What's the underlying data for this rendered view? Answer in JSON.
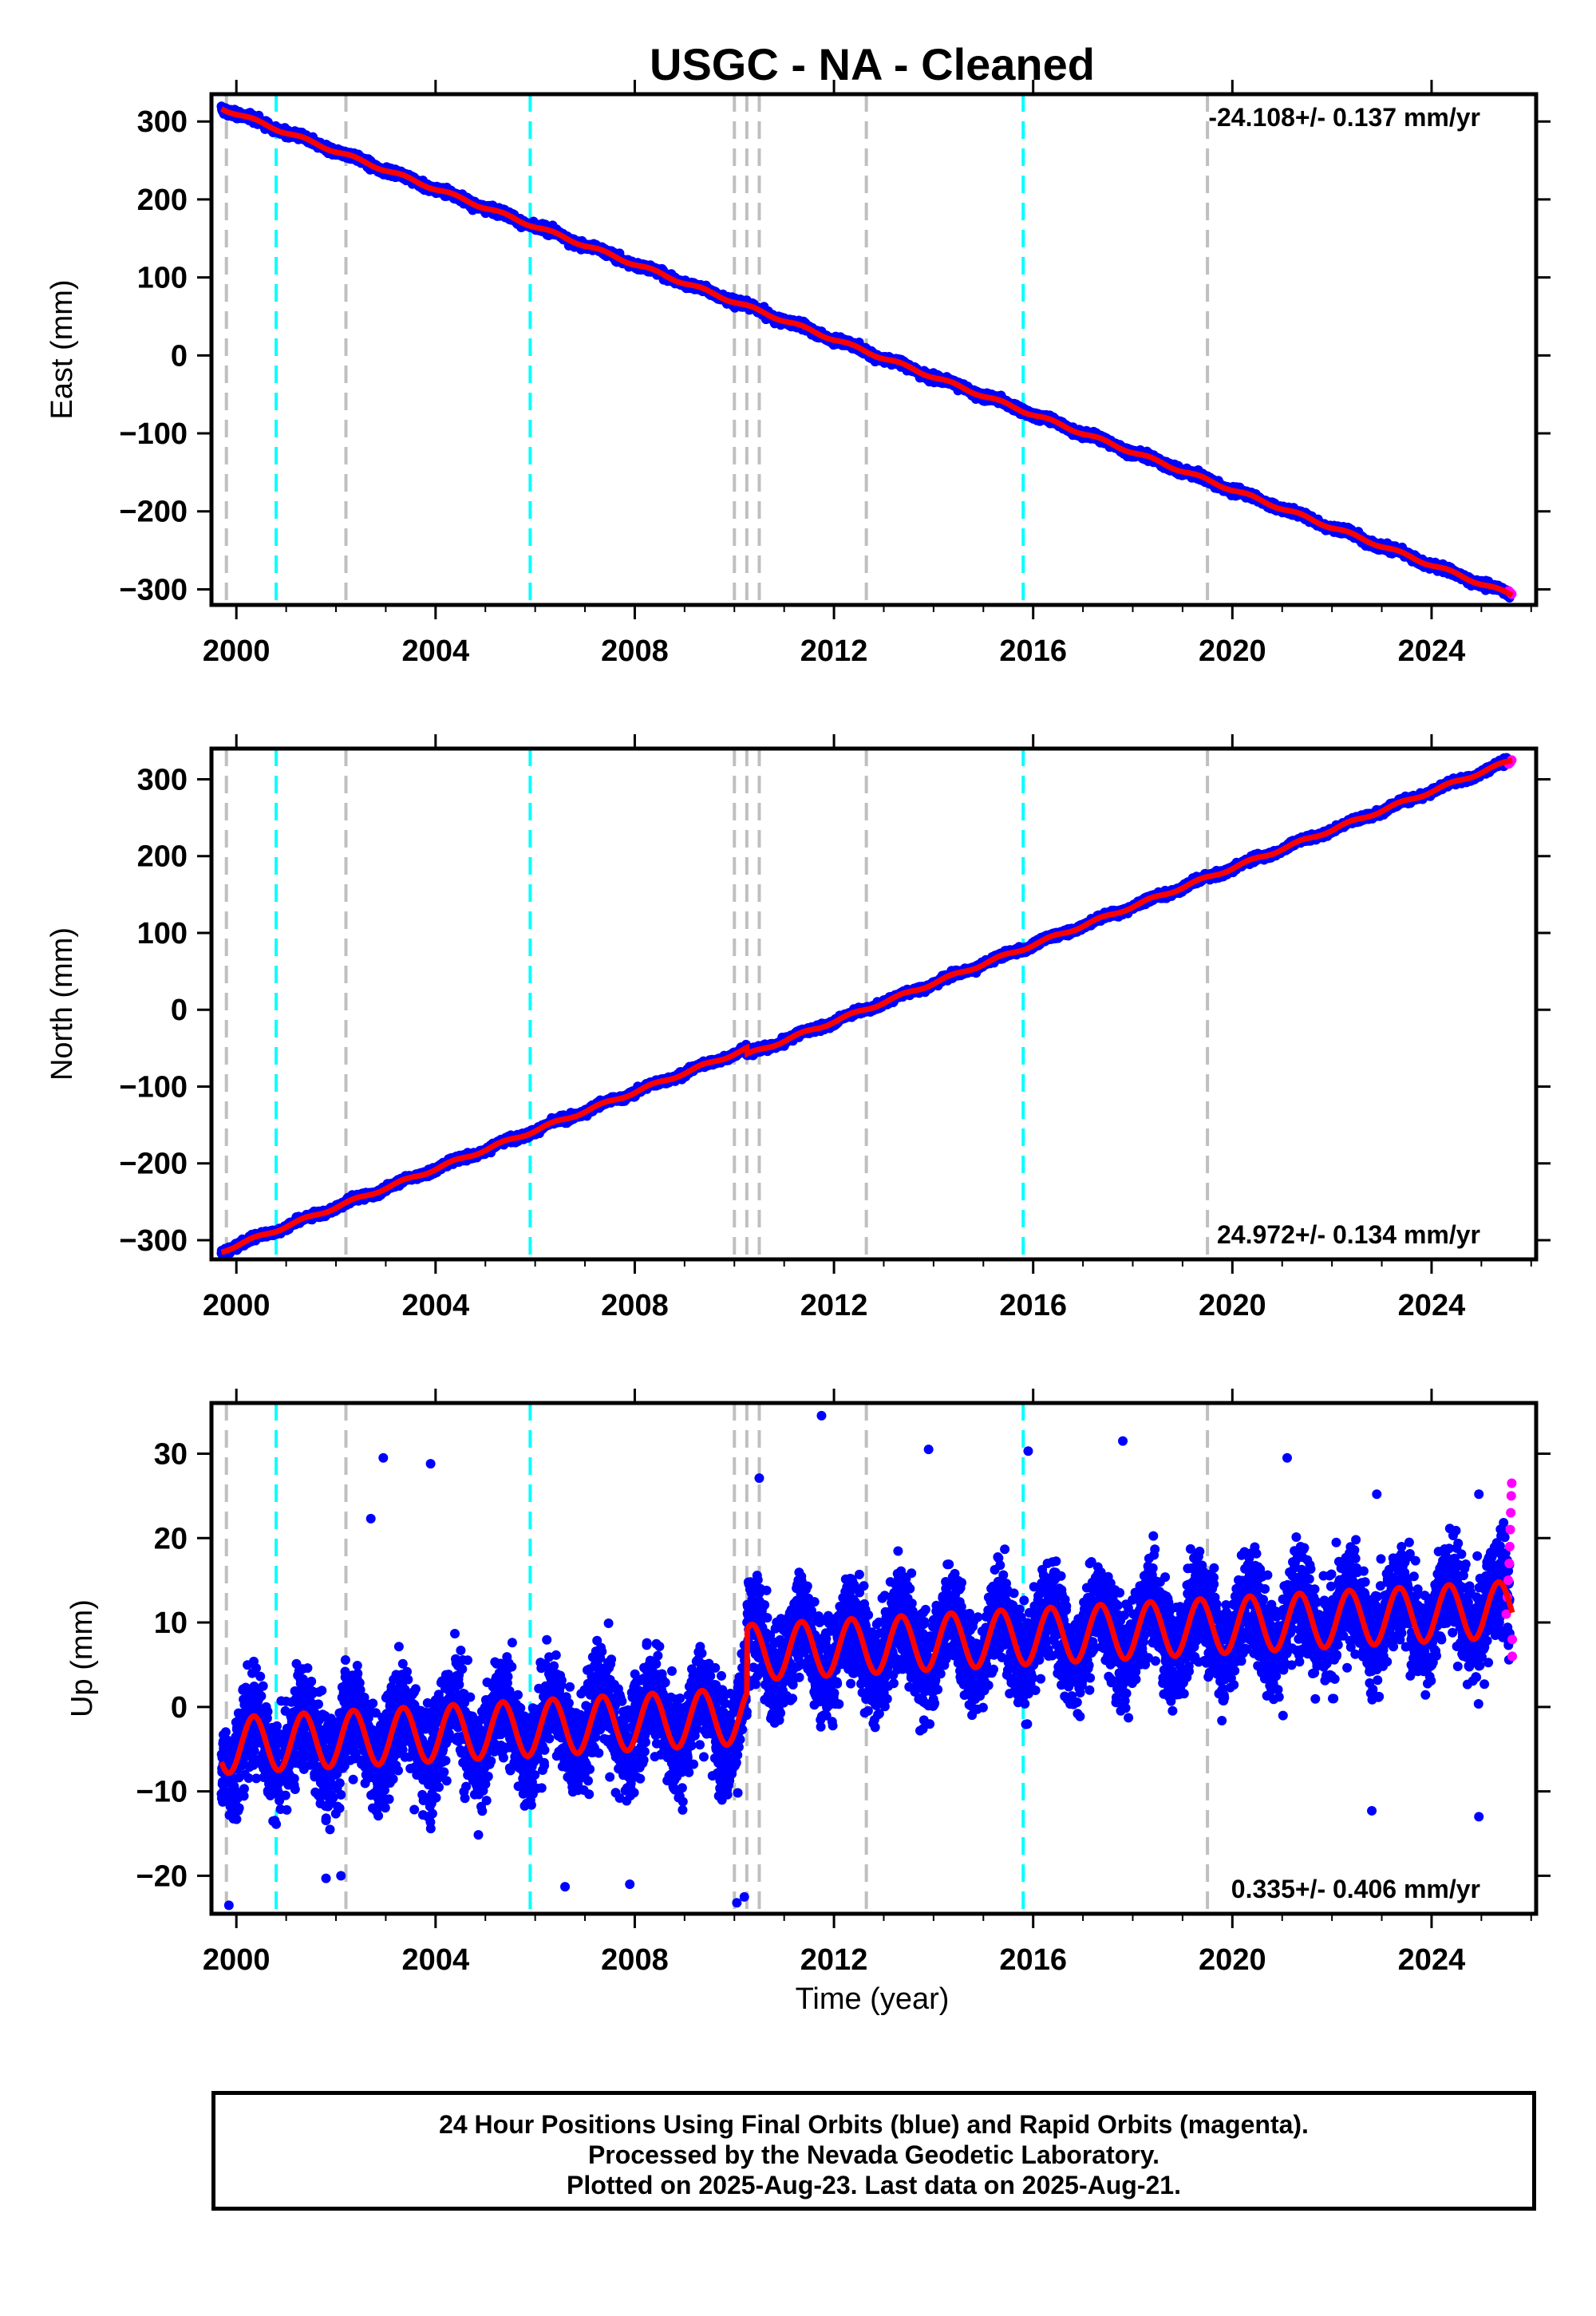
{
  "chart_data": [
    {
      "type": "scatter",
      "title": "USGC  - NA - Cleaned",
      "ylabel": "East (mm)",
      "xlim": [
        1999.5,
        2026.1
      ],
      "ylim": [
        -320,
        335
      ],
      "xticks": [
        2000,
        2004,
        2008,
        2012,
        2016,
        2020,
        2024
      ],
      "yticks": [
        -300,
        -200,
        -100,
        0,
        100,
        200,
        300
      ],
      "rate_label": "-24.108+/- 0.137 mm/yr",
      "trend": {
        "rate_mm_per_yr": -24.108,
        "value_at_2000": 310,
        "start_year": 1999.7,
        "end_year": 2025.62
      },
      "noise_mm": 3.5,
      "seasonal_amplitude_mm": 2,
      "offsets": [],
      "rapid_orbit_points": [
        [
          2025.55,
          -302
        ],
        [
          2025.58,
          -304
        ],
        [
          2025.61,
          -306
        ]
      ],
      "colors": {
        "final": "#0000ff",
        "rapid": "#ff00ff",
        "model": "#ff0000",
        "equipment": "#00ffff",
        "earthquake": "#bfbfbf"
      }
    },
    {
      "type": "scatter",
      "ylabel": "North (mm)",
      "xlim": [
        1999.5,
        2026.1
      ],
      "ylim": [
        -325,
        340
      ],
      "xticks": [
        2000,
        2004,
        2008,
        2012,
        2016,
        2020,
        2024
      ],
      "yticks": [
        -300,
        -200,
        -100,
        0,
        100,
        200,
        300
      ],
      "rate_label": "24.972+/- 0.134 mm/yr",
      "trend": {
        "rate_mm_per_yr": 24.972,
        "value_at_2000": -307,
        "start_year": 1999.7,
        "end_year": 2025.62
      },
      "noise_mm": 3,
      "seasonal_amplitude_mm": 2,
      "offsets": [
        {
          "year": 2010.25,
          "mm": -8
        }
      ],
      "rapid_orbit_points": [
        [
          2025.55,
          320
        ],
        [
          2025.58,
          322
        ],
        [
          2025.61,
          325
        ]
      ],
      "colors": {
        "final": "#0000ff",
        "rapid": "#ff00ff",
        "model": "#ff0000",
        "equipment": "#00ffff",
        "earthquake": "#bfbfbf"
      }
    },
    {
      "type": "scatter",
      "ylabel": "Up (mm)",
      "xlabel": "Time (year)",
      "xlim": [
        1999.5,
        2026.1
      ],
      "ylim": [
        -24.5,
        36
      ],
      "xticks": [
        2000,
        2004,
        2008,
        2012,
        2016,
        2020,
        2024
      ],
      "yticks": [
        -20,
        -10,
        0,
        10,
        20,
        30
      ],
      "rate_label": "0.335+/- 0.406 mm/yr",
      "trend": {
        "rate_mm_per_yr": 0.335,
        "value_at_2000": -4.5,
        "start_year": 1999.7,
        "end_year": 2025.62
      },
      "noise_mm": 4.2,
      "seasonal_amplitude_mm": 3.3,
      "offsets": [
        {
          "year": 2010.25,
          "mm": 7.5
        }
      ],
      "rapid_orbit_points": [
        [
          2025.5,
          11
        ],
        [
          2025.52,
          13
        ],
        [
          2025.54,
          15
        ],
        [
          2025.56,
          17
        ],
        [
          2025.57,
          19
        ],
        [
          2025.58,
          21
        ],
        [
          2025.59,
          23
        ],
        [
          2025.6,
          25
        ],
        [
          2025.61,
          26.5
        ],
        [
          2025.62,
          6
        ],
        [
          2025.62,
          8
        ]
      ],
      "outliers": [
        [
          2011.75,
          34.5
        ],
        [
          2013.9,
          30.5
        ],
        [
          2015.9,
          30.3
        ],
        [
          2017.8,
          31.5
        ],
        [
          2021.1,
          29.5
        ],
        [
          2002.95,
          29.5
        ],
        [
          2003.9,
          28.8
        ],
        [
          2002.7,
          22.3
        ],
        [
          2010.5,
          27.1
        ],
        [
          2024.95,
          25.2
        ],
        [
          2022.9,
          25.2
        ],
        [
          1999.85,
          -23.5
        ],
        [
          2010.05,
          -23.2
        ],
        [
          2007.9,
          -21
        ],
        [
          2006.6,
          -21.3
        ],
        [
          2001.8,
          -20.3
        ],
        [
          2002.1,
          -20.0
        ],
        [
          2010.2,
          -22.5
        ],
        [
          2022.8,
          -12.3
        ],
        [
          2024.95,
          -13
        ]
      ],
      "colors": {
        "final": "#0000ff",
        "rapid": "#ff00ff",
        "model": "#ff0000",
        "equipment": "#00ffff",
        "earthquake": "#bfbfbf"
      }
    }
  ],
  "events": {
    "equipment_change_years": [
      2000.8,
      2005.9,
      2015.8
    ],
    "earthquake_years": [
      1999.8,
      2002.2,
      2010.0,
      2010.25,
      2010.5,
      2012.65,
      2019.5
    ]
  },
  "footer": {
    "line1": "24 Hour Positions Using Final Orbits (blue) and Rapid Orbits (magenta).",
    "line2": "Processed by the Nevada Geodetic Laboratory.",
    "line3": "Plotted on 2025-Aug-23. Last data on 2025-Aug-21."
  }
}
